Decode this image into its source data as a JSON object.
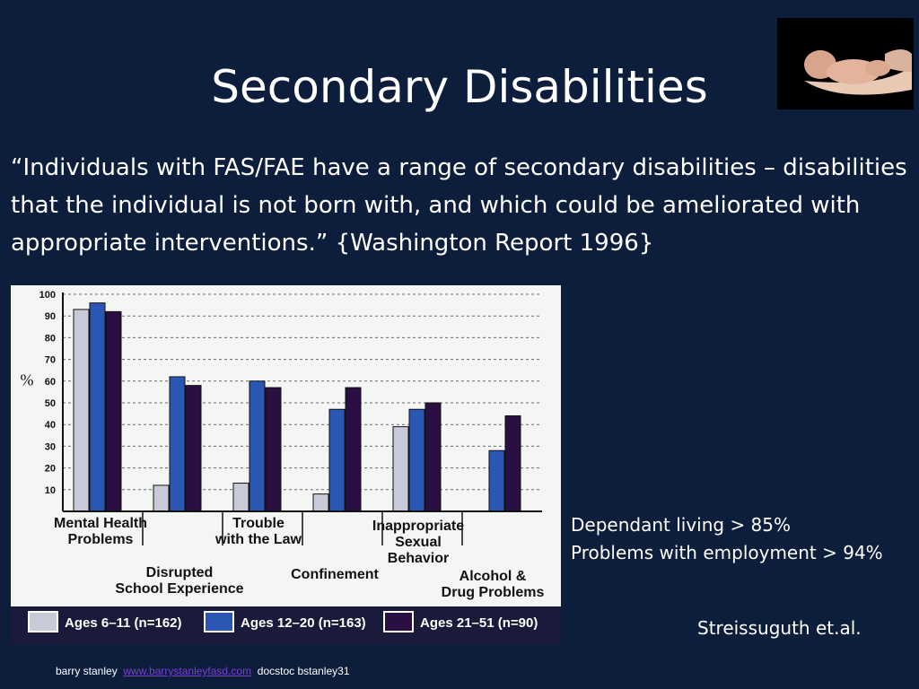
{
  "slide": {
    "title": "Secondary Disabilities",
    "quote": "“Individuals with FAS/FAE have a range of secondary disabilities – disabilities that the individual is not born with, and which could be ameliorated with appropriate interventions.” {Washington Report 1996}",
    "stats": [
      "Dependant  living > 85%",
      "Problems  with employment > 94%"
    ],
    "citation": "Streissuguth et.al.",
    "footer": {
      "author": "barry stanley",
      "link_text": "www.barrystanleyfasd.com",
      "suffix": "docstoc bstanley31"
    }
  },
  "chart_data": {
    "type": "bar",
    "ylabel": "%",
    "ylim": [
      0,
      100
    ],
    "yticks": [
      10,
      20,
      30,
      40,
      50,
      60,
      70,
      80,
      90,
      100
    ],
    "grid": true,
    "legend_position": "bottom",
    "categories": [
      [
        "Mental Health",
        "Problems"
      ],
      [
        "Disrupted",
        "School Experience"
      ],
      [
        "Trouble",
        "with the Law"
      ],
      [
        "Confinement"
      ],
      [
        "Inappropriate",
        "Sexual",
        "Behavior"
      ],
      [
        "Alcohol &",
        "Drug Problems"
      ]
    ],
    "series": [
      {
        "name": "Ages 6–11 (n=162)",
        "color": "#c9cad8",
        "values": [
          93,
          12,
          13,
          8,
          39,
          null
        ]
      },
      {
        "name": "Ages 12–20 (n=163)",
        "color": "#2a56b4",
        "values": [
          96,
          62,
          60,
          47,
          47,
          28
        ]
      },
      {
        "name": "Ages 21–51 (n=90)",
        "color": "#2a0f42",
        "values": [
          92,
          58,
          57,
          57,
          50,
          44
        ]
      }
    ]
  }
}
